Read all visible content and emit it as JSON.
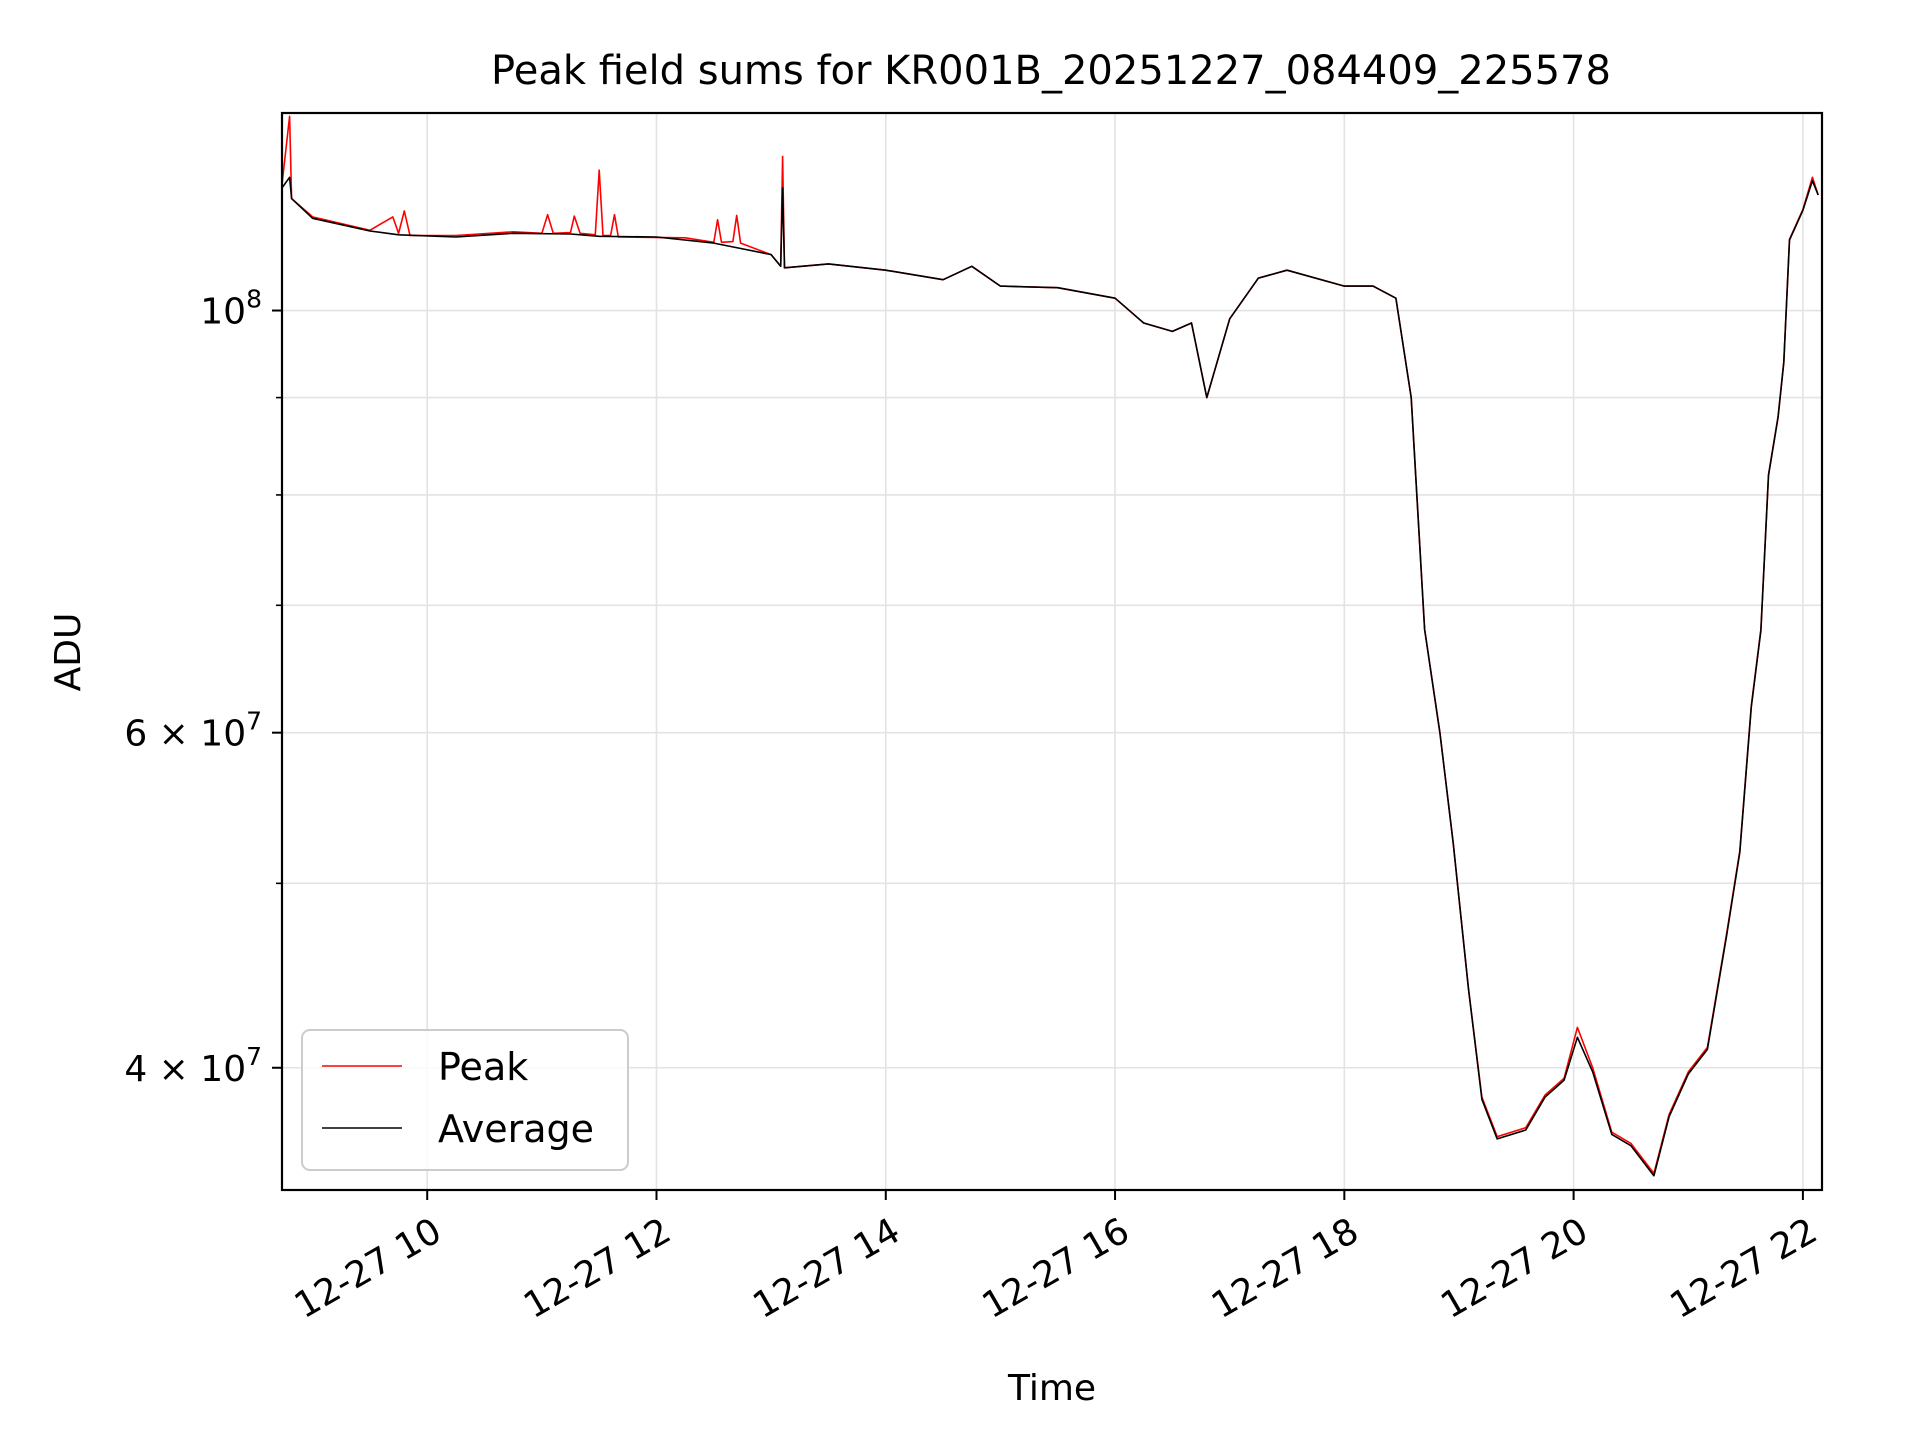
{
  "chart_data": {
    "type": "line",
    "title": "Peak field sums for KR001B_20251227_084409_225578",
    "xlabel": "Time",
    "ylabel": "ADU",
    "yscale": "log",
    "xlim": [
      "2025-12-27T08:44",
      "2025-12-27T22:10"
    ],
    "ylim": [
      34500000,
      127000000
    ],
    "grid": true,
    "legend_position": "lower-left",
    "x_ticks": [
      {
        "value": "2025-12-27T10:00",
        "label": "12-27 10"
      },
      {
        "value": "2025-12-27T12:00",
        "label": "12-27 12"
      },
      {
        "value": "2025-12-27T14:00",
        "label": "12-27 14"
      },
      {
        "value": "2025-12-27T16:00",
        "label": "12-27 16"
      },
      {
        "value": "2025-12-27T18:00",
        "label": "12-27 18"
      },
      {
        "value": "2025-12-27T20:00",
        "label": "12-27 20"
      },
      {
        "value": "2025-12-27T22:00",
        "label": "12-27 22"
      }
    ],
    "y_ticks_major": [
      {
        "value": 100000000,
        "base": "10",
        "exp": "8"
      },
      {
        "value": 60000000,
        "base": "6 × 10",
        "exp": "7"
      },
      {
        "value": 40000000,
        "base": "4 × 10",
        "exp": "7"
      }
    ],
    "y_ticks_minor": [
      50000000,
      70000000,
      80000000,
      90000000
    ],
    "series": [
      {
        "name": "Peak",
        "color": "#ff0000",
        "points": [
          [
            "2025-12-27T08:44",
            116500000
          ],
          [
            "2025-12-27T08:48",
            126500000
          ],
          [
            "2025-12-27T08:49",
            114500000
          ],
          [
            "2025-12-27T09:00",
            112000000
          ],
          [
            "2025-12-27T09:30",
            110200000
          ],
          [
            "2025-12-27T09:42",
            112000000
          ],
          [
            "2025-12-27T09:45",
            109800000
          ],
          [
            "2025-12-27T09:48",
            112800000
          ],
          [
            "2025-12-27T09:51",
            109500000
          ],
          [
            "2025-12-27T10:15",
            109500000
          ],
          [
            "2025-12-27T10:45",
            110000000
          ],
          [
            "2025-12-27T11:00",
            109800000
          ],
          [
            "2025-12-27T11:03",
            112300000
          ],
          [
            "2025-12-27T11:06",
            109800000
          ],
          [
            "2025-12-27T11:15",
            109900000
          ],
          [
            "2025-12-27T11:17",
            112100000
          ],
          [
            "2025-12-27T11:20",
            109800000
          ],
          [
            "2025-12-27T11:28",
            109600000
          ],
          [
            "2025-12-27T11:30",
            118500000
          ],
          [
            "2025-12-27T11:32",
            109500000
          ],
          [
            "2025-12-27T11:36",
            109500000
          ],
          [
            "2025-12-27T11:38",
            112300000
          ],
          [
            "2025-12-27T11:40",
            109300000
          ],
          [
            "2025-12-27T12:15",
            109200000
          ],
          [
            "2025-12-27T12:30",
            108600000
          ],
          [
            "2025-12-27T12:32",
            111600000
          ],
          [
            "2025-12-27T12:34",
            108600000
          ],
          [
            "2025-12-27T12:40",
            108700000
          ],
          [
            "2025-12-27T12:42",
            112200000
          ],
          [
            "2025-12-27T12:44",
            108500000
          ],
          [
            "2025-12-27T13:00",
            107000000
          ],
          [
            "2025-12-27T13:05",
            105500000
          ],
          [
            "2025-12-27T13:06",
            120500000
          ],
          [
            "2025-12-27T13:07",
            105300000
          ],
          [
            "2025-12-27T13:30",
            105800000
          ],
          [
            "2025-12-27T14:00",
            105000000
          ],
          [
            "2025-12-27T14:30",
            103800000
          ],
          [
            "2025-12-27T14:45",
            105500000
          ],
          [
            "2025-12-27T15:00",
            103000000
          ],
          [
            "2025-12-27T15:30",
            102800000
          ],
          [
            "2025-12-27T16:00",
            101500000
          ],
          [
            "2025-12-27T16:15",
            98500000
          ],
          [
            "2025-12-27T16:30",
            97500000
          ],
          [
            "2025-12-27T16:40",
            98500000
          ],
          [
            "2025-12-27T16:48",
            90000000
          ],
          [
            "2025-12-27T17:00",
            99000000
          ],
          [
            "2025-12-27T17:15",
            104000000
          ],
          [
            "2025-12-27T17:30",
            105000000
          ],
          [
            "2025-12-27T18:00",
            103000000
          ],
          [
            "2025-12-27T18:15",
            103000000
          ],
          [
            "2025-12-27T18:27",
            101500000
          ],
          [
            "2025-12-27T18:35",
            90000000
          ],
          [
            "2025-12-27T18:42",
            68000000
          ],
          [
            "2025-12-27T18:50",
            60000000
          ],
          [
            "2025-12-27T18:57",
            52500000
          ],
          [
            "2025-12-27T19:05",
            44000000
          ],
          [
            "2025-12-27T19:12",
            38600000
          ],
          [
            "2025-12-27T19:20",
            36800000
          ],
          [
            "2025-12-27T19:35",
            37200000
          ],
          [
            "2025-12-27T19:45",
            38700000
          ],
          [
            "2025-12-27T19:55",
            39500000
          ],
          [
            "2025-12-27T20:02",
            42000000
          ],
          [
            "2025-12-27T20:10",
            40000000
          ],
          [
            "2025-12-27T20:20",
            37000000
          ],
          [
            "2025-12-27T20:30",
            36500000
          ],
          [
            "2025-12-27T20:42",
            35200000
          ],
          [
            "2025-12-27T20:50",
            37800000
          ],
          [
            "2025-12-27T21:00",
            39800000
          ],
          [
            "2025-12-27T21:10",
            41000000
          ],
          [
            "2025-12-27T21:20",
            47000000
          ],
          [
            "2025-12-27T21:27",
            52000000
          ],
          [
            "2025-12-27T21:33",
            62000000
          ],
          [
            "2025-12-27T21:38",
            68000000
          ],
          [
            "2025-12-27T21:42",
            82000000
          ],
          [
            "2025-12-27T21:47",
            88000000
          ],
          [
            "2025-12-27T21:50",
            94000000
          ],
          [
            "2025-12-27T21:53",
            109000000
          ],
          [
            "2025-12-27T22:00",
            113000000
          ],
          [
            "2025-12-27T22:05",
            117500000
          ],
          [
            "2025-12-27T22:08",
            115000000
          ]
        ]
      },
      {
        "name": "Average",
        "color": "#000000",
        "points": [
          [
            "2025-12-27T08:44",
            116000000
          ],
          [
            "2025-12-27T08:48",
            117500000
          ],
          [
            "2025-12-27T08:49",
            114500000
          ],
          [
            "2025-12-27T09:00",
            111800000
          ],
          [
            "2025-12-27T09:30",
            110100000
          ],
          [
            "2025-12-27T09:45",
            109600000
          ],
          [
            "2025-12-27T10:15",
            109300000
          ],
          [
            "2025-12-27T10:45",
            109800000
          ],
          [
            "2025-12-27T11:15",
            109700000
          ],
          [
            "2025-12-27T11:30",
            109400000
          ],
          [
            "2025-12-27T12:00",
            109300000
          ],
          [
            "2025-12-27T12:30",
            108500000
          ],
          [
            "2025-12-27T13:00",
            107000000
          ],
          [
            "2025-12-27T13:05",
            105500000
          ],
          [
            "2025-12-27T13:06",
            116000000
          ],
          [
            "2025-12-27T13:07",
            105300000
          ],
          [
            "2025-12-27T13:30",
            105800000
          ],
          [
            "2025-12-27T14:00",
            105000000
          ],
          [
            "2025-12-27T14:30",
            103800000
          ],
          [
            "2025-12-27T14:45",
            105500000
          ],
          [
            "2025-12-27T15:00",
            103000000
          ],
          [
            "2025-12-27T15:30",
            102800000
          ],
          [
            "2025-12-27T16:00",
            101500000
          ],
          [
            "2025-12-27T16:15",
            98500000
          ],
          [
            "2025-12-27T16:30",
            97500000
          ],
          [
            "2025-12-27T16:40",
            98500000
          ],
          [
            "2025-12-27T16:48",
            90000000
          ],
          [
            "2025-12-27T17:00",
            99000000
          ],
          [
            "2025-12-27T17:15",
            104000000
          ],
          [
            "2025-12-27T17:30",
            105000000
          ],
          [
            "2025-12-27T18:00",
            103000000
          ],
          [
            "2025-12-27T18:15",
            103000000
          ],
          [
            "2025-12-27T18:27",
            101500000
          ],
          [
            "2025-12-27T18:35",
            90000000
          ],
          [
            "2025-12-27T18:42",
            68000000
          ],
          [
            "2025-12-27T18:50",
            60000000
          ],
          [
            "2025-12-27T18:57",
            52500000
          ],
          [
            "2025-12-27T19:05",
            44000000
          ],
          [
            "2025-12-27T19:12",
            38500000
          ],
          [
            "2025-12-27T19:20",
            36700000
          ],
          [
            "2025-12-27T19:35",
            37100000
          ],
          [
            "2025-12-27T19:45",
            38600000
          ],
          [
            "2025-12-27T19:55",
            39400000
          ],
          [
            "2025-12-27T20:02",
            41500000
          ],
          [
            "2025-12-27T20:10",
            39800000
          ],
          [
            "2025-12-27T20:20",
            36900000
          ],
          [
            "2025-12-27T20:30",
            36400000
          ],
          [
            "2025-12-27T20:42",
            35100000
          ],
          [
            "2025-12-27T20:50",
            37700000
          ],
          [
            "2025-12-27T21:00",
            39700000
          ],
          [
            "2025-12-27T21:10",
            40900000
          ],
          [
            "2025-12-27T21:20",
            46900000
          ],
          [
            "2025-12-27T21:27",
            51900000
          ],
          [
            "2025-12-27T21:33",
            61900000
          ],
          [
            "2025-12-27T21:38",
            67900000
          ],
          [
            "2025-12-27T21:42",
            81900000
          ],
          [
            "2025-12-27T21:47",
            87900000
          ],
          [
            "2025-12-27T21:50",
            93900000
          ],
          [
            "2025-12-27T21:53",
            108900000
          ],
          [
            "2025-12-27T22:00",
            112900000
          ],
          [
            "2025-12-27T22:05",
            117000000
          ],
          [
            "2025-12-27T22:08",
            115000000
          ]
        ]
      }
    ]
  }
}
